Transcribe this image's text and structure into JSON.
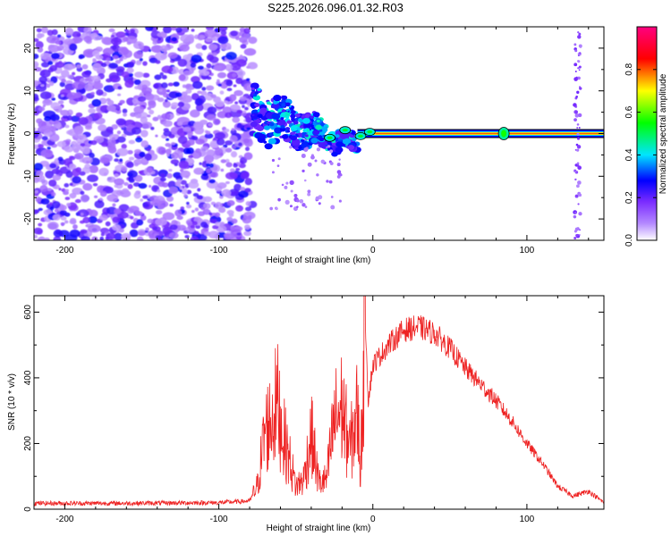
{
  "title": "S225.2026.096.01.32.R03",
  "chart_data": [
    {
      "type": "heatmap",
      "name": "spectrogram",
      "xlabel": "Height of straight line (km)",
      "ylabel": "Frequency (Hz)",
      "xlim": [
        -220,
        150
      ],
      "ylim": [
        -25,
        25
      ],
      "xticks": [
        -200,
        -100,
        0,
        100
      ],
      "yticks": [
        -20,
        -10,
        0,
        10,
        20
      ],
      "colorbar": {
        "label": "Normalized spectral amplitude",
        "range": [
          0,
          1
        ],
        "ticks": [
          "0.0",
          "0.2",
          "0.4",
          "0.6",
          "0.8"
        ],
        "colormap": [
          "#ffffff",
          "#7b2cff",
          "#0000ff",
          "#00e5ff",
          "#00ff00",
          "#ffff00",
          "#ff0000",
          "#ff00aa"
        ]
      },
      "features": {
        "noise_region": {
          "x_from": -220,
          "x_to": -78
        },
        "scattered_region": {
          "x_from": -78,
          "x_to": -10,
          "freq_from": 5,
          "freq_to": -3
        },
        "carrier_line": {
          "x_from": -10,
          "x_to": 150,
          "frequency": 0,
          "peak_amplitude": 0.95
        },
        "spike_at_x": [
          85,
          133
        ]
      }
    },
    {
      "type": "line",
      "name": "snr",
      "xlabel": "Height of straight line (km)",
      "ylabel": "SNR (10 * v/v)",
      "xlim": [
        -220,
        150
      ],
      "ylim": [
        0,
        650
      ],
      "xticks": [
        -200,
        -100,
        0,
        100
      ],
      "yticks": [
        0,
        200,
        400,
        600
      ],
      "color": "#ee2222",
      "series": [
        {
          "name": "SNR",
          "x": [
            -220,
            -160,
            -100,
            -80,
            -75,
            -70,
            -66,
            -62,
            -58,
            -54,
            -50,
            -45,
            -40,
            -35,
            -30,
            -25,
            -20,
            -15,
            -10,
            -8,
            -5,
            -3,
            0,
            10,
            20,
            30,
            40,
            50,
            60,
            70,
            80,
            90,
            100,
            110,
            120,
            130,
            140,
            150
          ],
          "values": [
            18,
            18,
            20,
            25,
            70,
            240,
            270,
            330,
            220,
            150,
            70,
            90,
            230,
            80,
            90,
            270,
            310,
            180,
            300,
            120,
            610,
            330,
            440,
            500,
            545,
            555,
            535,
            490,
            430,
            380,
            330,
            270,
            200,
            140,
            70,
            40,
            55,
            20
          ]
        }
      ]
    }
  ]
}
